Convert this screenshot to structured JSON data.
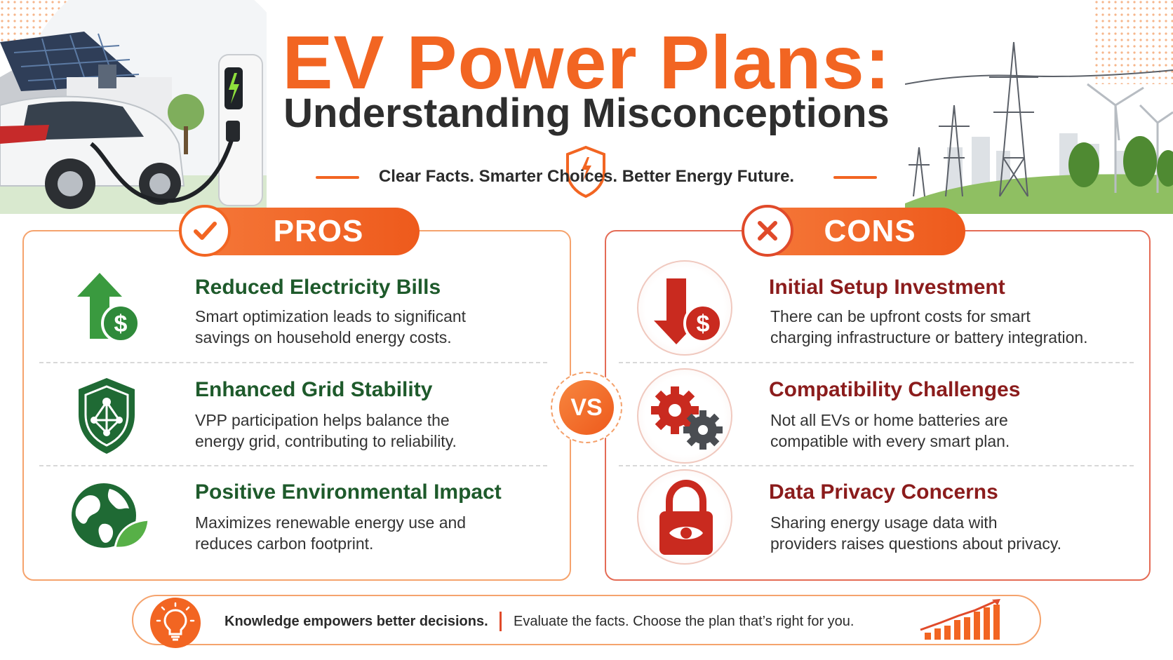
{
  "header": {
    "title": "EV Power Plans:",
    "subtitle": "Understanding Misconceptions",
    "tagline": "Clear Facts. Smarter Choices. Better Energy Future."
  },
  "pros": {
    "label": "PROS",
    "items": [
      {
        "title": "Reduced Electricity Bills",
        "line1": "Smart optimization leads to significant",
        "line2": "savings on household energy costs.",
        "icon": "arrow-up-dollar-icon"
      },
      {
        "title": "Enhanced Grid Stability",
        "line1": "VPP participation helps balance the",
        "line2": "energy grid, contributing to reliability.",
        "icon": "shield-network-icon"
      },
      {
        "title": "Positive Environmental Impact",
        "line1": "Maximizes renewable energy use and",
        "line2": "reduces carbon footprint.",
        "icon": "globe-leaf-icon"
      }
    ]
  },
  "cons": {
    "label": "CONS",
    "items": [
      {
        "title": "Initial Setup Investment",
        "line1": "There can be upfront costs for smart",
        "line2": "charging infrastructure or battery integration.",
        "icon": "arrow-down-dollar-icon"
      },
      {
        "title": "Compatibility Challenges",
        "line1": "Not all EVs or home batteries are",
        "line2": "compatible with every smart plan.",
        "icon": "gears-icon"
      },
      {
        "title": "Data Privacy Concerns",
        "line1": "Sharing energy usage data with",
        "line2": "providers raises questions about privacy.",
        "icon": "padlock-eye-icon"
      }
    ]
  },
  "vs_label": "VS",
  "footer": {
    "strong": "Knowledge empowers better decisions.",
    "text": "Evaluate the facts. Choose the plan that’s right for you."
  },
  "colors": {
    "accent": "#f26522",
    "pros_title": "#1e5a2b",
    "cons_title": "#8b1c1c",
    "pros_icon": "#2f8a3a",
    "cons_icon": "#c92a1f"
  }
}
